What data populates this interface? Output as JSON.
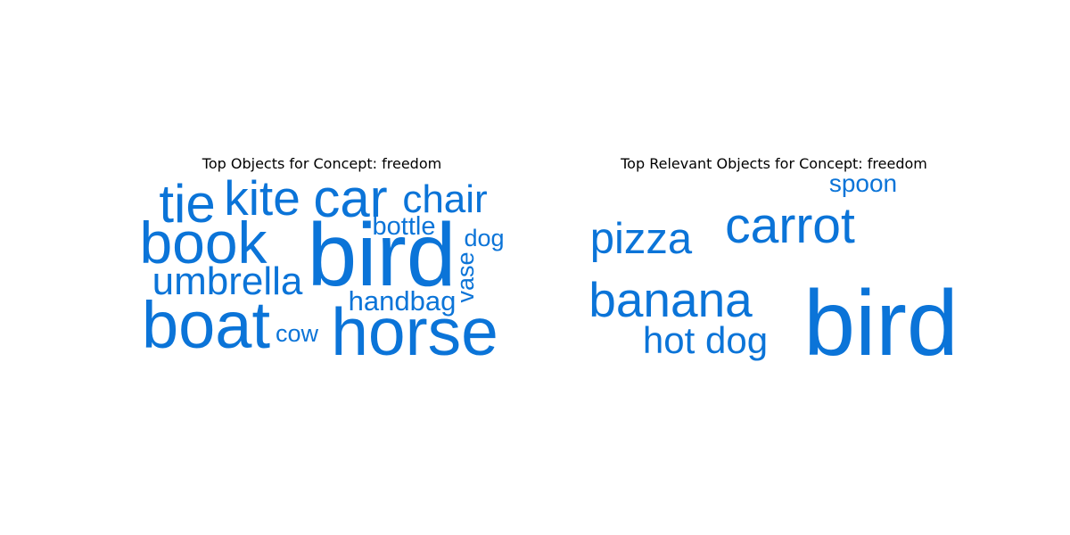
{
  "chart_data": [
    {
      "type": "wordcloud",
      "title": "Top Objects for Concept: freedom",
      "color": "#0b74d8",
      "words": [
        {
          "text": "bird",
          "weight": 1.0
        },
        {
          "text": "horse",
          "weight": 0.86
        },
        {
          "text": "boat",
          "weight": 0.8
        },
        {
          "text": "book",
          "weight": 0.76
        },
        {
          "text": "car",
          "weight": 0.68
        },
        {
          "text": "kite",
          "weight": 0.6
        },
        {
          "text": "tie",
          "weight": 0.6
        },
        {
          "text": "umbrella",
          "weight": 0.5
        },
        {
          "text": "chair",
          "weight": 0.5
        },
        {
          "text": "handbag",
          "weight": 0.38
        },
        {
          "text": "bottle",
          "weight": 0.34
        },
        {
          "text": "dog",
          "weight": 0.3
        },
        {
          "text": "vase",
          "weight": 0.3
        },
        {
          "text": "cow",
          "weight": 0.3
        }
      ]
    },
    {
      "type": "wordcloud",
      "title": "Top Relevant Objects for Concept: freedom",
      "color": "#0b74d8",
      "words": [
        {
          "text": "bird",
          "weight": 1.0
        },
        {
          "text": "carrot",
          "weight": 0.66
        },
        {
          "text": "banana",
          "weight": 0.6
        },
        {
          "text": "pizza",
          "weight": 0.55
        },
        {
          "text": "hot dog",
          "weight": 0.49
        },
        {
          "text": "spoon",
          "weight": 0.33
        }
      ]
    }
  ]
}
